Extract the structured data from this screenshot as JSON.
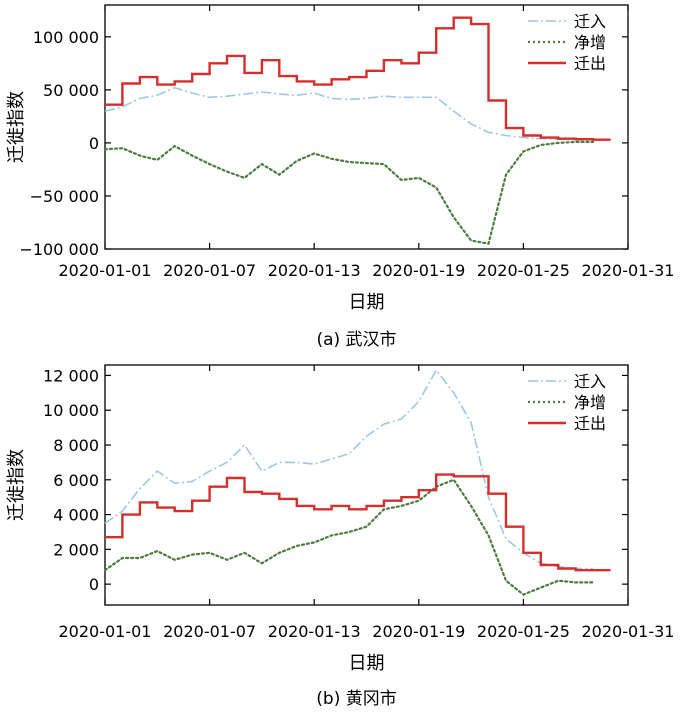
{
  "chart_data": [
    {
      "type": "line",
      "caption": "(a) 武汉市",
      "xlabel": "日期",
      "ylabel": "迁徙指数",
      "xlim": [
        "2020-01-01",
        "2020-01-31"
      ],
      "ylim": [
        -100000,
        130000
      ],
      "x_ticks": [
        "2020-01-01",
        "2020-01-07",
        "2020-01-13",
        "2020-01-19",
        "2020-01-25",
        "2020-01-31"
      ],
      "y_ticks": [
        -100000,
        -50000,
        0,
        50000,
        100000
      ],
      "y_tick_labels": [
        "−100 000",
        "−50 000",
        "0",
        "50 000",
        "100 000"
      ],
      "legend_position": "top-right",
      "x": [
        "2020-01-01",
        "2020-01-02",
        "2020-01-03",
        "2020-01-04",
        "2020-01-05",
        "2020-01-06",
        "2020-01-07",
        "2020-01-08",
        "2020-01-09",
        "2020-01-10",
        "2020-01-11",
        "2020-01-12",
        "2020-01-13",
        "2020-01-14",
        "2020-01-15",
        "2020-01-16",
        "2020-01-17",
        "2020-01-18",
        "2020-01-19",
        "2020-01-20",
        "2020-01-21",
        "2020-01-22",
        "2020-01-23",
        "2020-01-24",
        "2020-01-25",
        "2020-01-26",
        "2020-01-27",
        "2020-01-28",
        "2020-01-29"
      ],
      "series": [
        {
          "name": "迁入",
          "style": "dashdot",
          "color": "#9cc9e6",
          "values": [
            30000,
            34000,
            42000,
            45000,
            52000,
            47000,
            43000,
            44000,
            46000,
            48000,
            46000,
            45000,
            47000,
            42000,
            41000,
            42000,
            44000,
            43000,
            43000,
            43000,
            30000,
            18000,
            10000,
            7000,
            5000,
            4000,
            3500,
            3000,
            2800
          ]
        },
        {
          "name": "净增",
          "style": "dotted",
          "color": "#4a7c3f",
          "values": [
            -6000,
            -5000,
            -12000,
            -16000,
            -3000,
            -12000,
            -20000,
            -27000,
            -33000,
            -20000,
            -30000,
            -17000,
            -10000,
            -15000,
            -18000,
            -19000,
            -20000,
            -35000,
            -33000,
            -42000,
            -70000,
            -92000,
            -95000,
            -30000,
            -8000,
            -2000,
            0,
            1000,
            1000
          ]
        },
        {
          "name": "迁出",
          "style": "step",
          "color": "#d62d2d",
          "values": [
            36000,
            56000,
            62000,
            55000,
            58000,
            65000,
            75000,
            82000,
            66000,
            78000,
            63000,
            58000,
            55000,
            60000,
            62000,
            68000,
            78000,
            75000,
            85000,
            108000,
            118000,
            112000,
            40000,
            14000,
            7000,
            5000,
            4000,
            3500,
            3000
          ]
        }
      ]
    },
    {
      "type": "line",
      "caption": "(b) 黄冈市",
      "xlabel": "日期",
      "ylabel": "迁徙指数",
      "xlim": [
        "2020-01-01",
        "2020-01-31"
      ],
      "ylim": [
        -1200,
        12600
      ],
      "x_ticks": [
        "2020-01-01",
        "2020-01-07",
        "2020-01-13",
        "2020-01-19",
        "2020-01-25",
        "2020-01-31"
      ],
      "y_ticks": [
        0,
        2000,
        4000,
        6000,
        8000,
        10000,
        12000
      ],
      "y_tick_labels": [
        "0",
        "2 000",
        "4 000",
        "6 000",
        "8 000",
        "10 000",
        "12 000"
      ],
      "legend_position": "top-right",
      "x": [
        "2020-01-01",
        "2020-01-02",
        "2020-01-03",
        "2020-01-04",
        "2020-01-05",
        "2020-01-06",
        "2020-01-07",
        "2020-01-08",
        "2020-01-09",
        "2020-01-10",
        "2020-01-11",
        "2020-01-12",
        "2020-01-13",
        "2020-01-14",
        "2020-01-15",
        "2020-01-16",
        "2020-01-17",
        "2020-01-18",
        "2020-01-19",
        "2020-01-20",
        "2020-01-21",
        "2020-01-22",
        "2020-01-23",
        "2020-01-24",
        "2020-01-25",
        "2020-01-26",
        "2020-01-27",
        "2020-01-28",
        "2020-01-29"
      ],
      "series": [
        {
          "name": "迁入",
          "style": "dashdot",
          "color": "#9cc9e6",
          "values": [
            3500,
            4200,
            5500,
            6500,
            5800,
            5900,
            6500,
            7000,
            8000,
            6500,
            7000,
            7000,
            6900,
            7200,
            7500,
            8500,
            9200,
            9500,
            10500,
            12300,
            11000,
            9300,
            5000,
            2600,
            1800,
            1200,
            1000,
            900,
            900
          ]
        },
        {
          "name": "净增",
          "style": "dotted",
          "color": "#4a7c3f",
          "values": [
            800,
            1500,
            1500,
            1900,
            1400,
            1700,
            1800,
            1400,
            1800,
            1200,
            1800,
            2200,
            2400,
            2800,
            3000,
            3300,
            4300,
            4500,
            4800,
            5600,
            6000,
            4500,
            2800,
            200,
            -600,
            -200,
            200,
            100,
            100
          ]
        },
        {
          "name": "迁出",
          "style": "step",
          "color": "#d62d2d",
          "values": [
            2700,
            4000,
            4700,
            4400,
            4200,
            4800,
            5600,
            6100,
            5300,
            5200,
            4900,
            4500,
            4300,
            4500,
            4300,
            4500,
            4800,
            5000,
            5400,
            6300,
            6200,
            6200,
            5200,
            3300,
            1800,
            1100,
            900,
            800,
            800
          ]
        }
      ]
    }
  ]
}
